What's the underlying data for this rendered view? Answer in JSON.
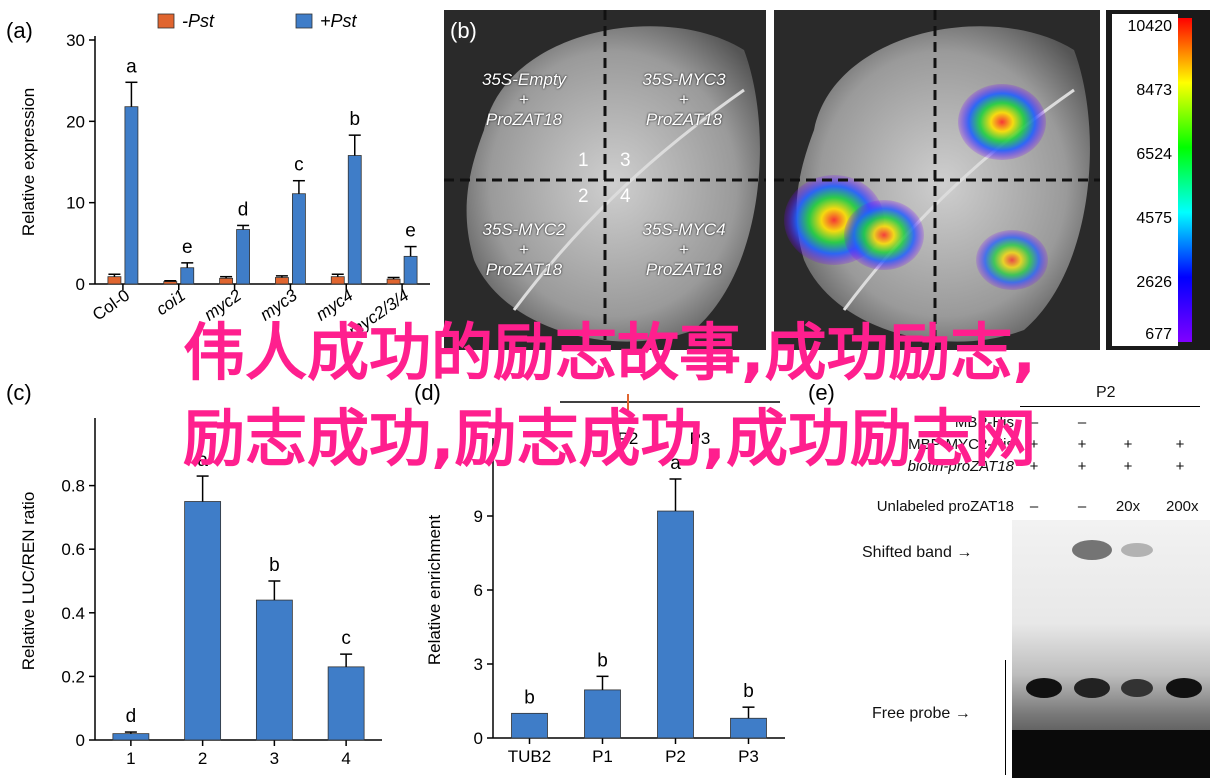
{
  "overlay": {
    "line1": "伟人成功的励志故事,成功励志,",
    "line2": "励志成功,励志成功,成功励志网"
  },
  "panel_labels": {
    "a": "(a)",
    "b": "(b)",
    "c": "(c)",
    "d": "(d)",
    "e": "(e)"
  },
  "chart_data": [
    {
      "type": "bar",
      "panel": "a",
      "ylabel": "Relative expression",
      "ylim": [
        0,
        30
      ],
      "yticks": [
        0,
        10,
        20,
        30
      ],
      "categories": [
        "Col-0",
        "coi1",
        "myc2",
        "myc3",
        "myc4",
        "myc2/3/4"
      ],
      "series": [
        {
          "name": "-Pst",
          "color": "#e0652f",
          "values": [
            0.9,
            0.3,
            0.7,
            0.8,
            0.9,
            0.6
          ],
          "errors": [
            0.3,
            0.1,
            0.2,
            0.2,
            0.3,
            0.2
          ]
        },
        {
          "name": "+Pst",
          "color": "#3f7dc8",
          "values": [
            21.8,
            2.0,
            6.7,
            11.1,
            15.8,
            3.4
          ],
          "errors": [
            3.0,
            0.6,
            0.5,
            1.6,
            2.5,
            1.2
          ],
          "letters": [
            "a",
            "e",
            "d",
            "c",
            "b",
            "e"
          ]
        }
      ],
      "legend": "top"
    },
    {
      "type": "bar",
      "panel": "c",
      "ylabel": "Relative LUC/REN ratio",
      "ylim": [
        0,
        1.0
      ],
      "yticks": [
        0.0,
        0.2,
        0.4,
        0.6,
        0.8
      ],
      "categories": [
        "1",
        "2",
        "3",
        "4"
      ],
      "series": [
        {
          "color": "#3f7dc8",
          "values": [
            0.02,
            0.75,
            0.44,
            0.23
          ],
          "errors": [
            0.005,
            0.08,
            0.06,
            0.04
          ],
          "letters": [
            "d",
            "a",
            "b",
            "c"
          ]
        }
      ]
    },
    {
      "type": "bar",
      "panel": "d",
      "ylabel": "Relative enrichment",
      "ylim": [
        0,
        12
      ],
      "yticks": [
        0,
        3,
        6,
        9
      ],
      "categories": [
        "TUB2",
        "P1",
        "P2",
        "P3"
      ],
      "series": [
        {
          "color": "#3f7dc8",
          "values": [
            1.0,
            1.95,
            9.2,
            0.8
          ],
          "errors": [
            0,
            0.55,
            1.3,
            0.45
          ],
          "letters": [
            "b",
            "b",
            "a",
            "b"
          ]
        }
      ],
      "promoter_labels": [
        "P2",
        "P3"
      ]
    }
  ],
  "leaf": {
    "quadrants": [
      {
        "l1": "35S-Empty",
        "l2": "+",
        "l3": "ProZAT18"
      },
      {
        "l1": "35S-MYC3",
        "l2": "+",
        "l3": "ProZAT18"
      },
      {
        "l1": "35S-MYC2",
        "l2": "+",
        "l3": "ProZAT18"
      },
      {
        "l1": "35S-MYC4",
        "l2": "+",
        "l3": "ProZAT18"
      }
    ],
    "numbers": [
      "1",
      "3",
      "2",
      "4"
    ],
    "colorbar": [
      "10420",
      "8473",
      "6524",
      "4575",
      "2626",
      "677"
    ]
  },
  "gel": {
    "rows": [
      {
        "label": "MBP-His",
        "vals": [
          "–",
          "–",
          "",
          ""
        ]
      },
      {
        "label": "MBP-MYC2-His",
        "vals": [
          "+",
          "+",
          "+",
          "+"
        ]
      },
      {
        "label": "biotin-proZAT18",
        "vals": [
          "+",
          "+",
          "+",
          "+"
        ]
      },
      {
        "label": "Unlabeled proZAT18",
        "vals": [
          "–",
          "–",
          "20x",
          "200x"
        ]
      }
    ],
    "header": "P2",
    "shifted_band": "Shifted band",
    "free_probe": "Free probe"
  }
}
